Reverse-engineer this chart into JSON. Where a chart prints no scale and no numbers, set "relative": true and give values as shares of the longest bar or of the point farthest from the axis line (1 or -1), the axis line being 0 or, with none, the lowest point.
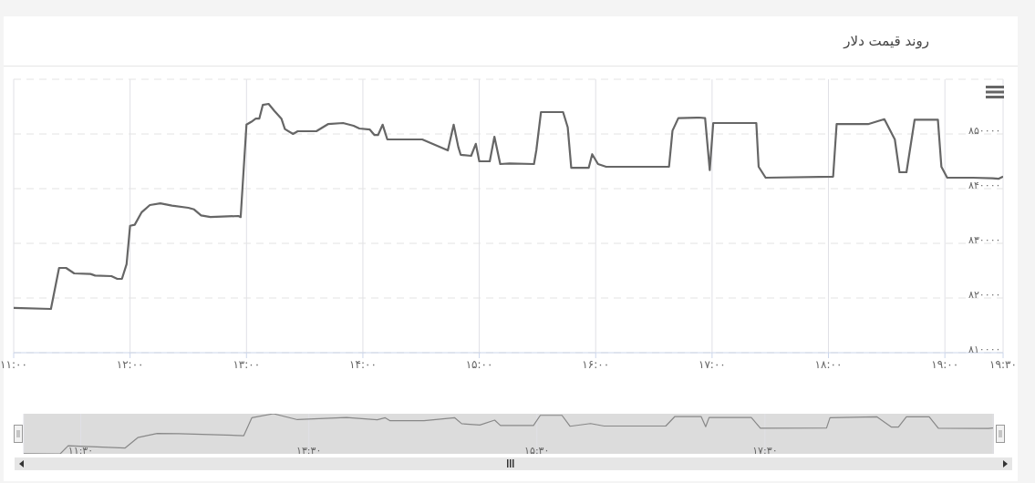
{
  "chart_data": [
    {
      "type": "line",
      "title": "روند قیمت دلار",
      "marker": "none",
      "grid": true,
      "x": [
        11.0,
        11.32,
        11.39,
        11.45,
        11.52,
        11.66,
        11.7,
        11.84,
        11.89,
        11.93,
        11.97,
        12.0,
        12.04,
        12.1,
        12.17,
        12.26,
        12.36,
        12.5,
        12.55,
        12.61,
        12.69,
        12.93,
        12.95,
        13.0,
        13.04,
        13.08,
        13.11,
        13.14,
        13.19,
        13.24,
        13.3,
        13.33,
        13.4,
        13.44,
        13.6,
        13.7,
        13.83,
        13.92,
        13.97,
        14.06,
        14.1,
        14.13,
        14.17,
        14.21,
        14.51,
        14.62,
        14.73,
        14.78,
        14.82,
        14.84,
        14.93,
        14.97,
        15.0,
        15.09,
        15.13,
        15.18,
        15.26,
        15.47,
        15.49,
        15.53,
        15.72,
        15.76,
        15.79,
        15.94,
        15.97,
        16.02,
        16.09,
        16.63,
        16.66,
        16.71,
        16.89,
        16.94,
        16.98,
        17.01,
        17.38,
        17.4,
        17.46,
        18.04,
        18.07,
        18.34,
        18.48,
        18.57,
        18.61,
        18.67,
        18.74,
        18.94,
        18.97,
        19.02,
        19.24,
        19.41,
        19.46,
        19.5
      ],
      "series": [
        {
          "color": "#666666",
          "values": [
            818200,
            818000,
            825500,
            825500,
            824500,
            824400,
            824100,
            824000,
            823500,
            823500,
            826200,
            833200,
            833400,
            835700,
            837000,
            837300,
            836900,
            836500,
            836200,
            835100,
            834800,
            835000,
            834800,
            851700,
            852200,
            852800,
            852800,
            855300,
            855500,
            854200,
            852800,
            850900,
            850000,
            850500,
            850500,
            851800,
            852000,
            851500,
            851000,
            850800,
            849800,
            849800,
            851700,
            849000,
            849000,
            848000,
            847000,
            851700,
            847600,
            846200,
            846000,
            848200,
            845000,
            845000,
            849500,
            844500,
            844600,
            844500,
            847000,
            854000,
            854000,
            851200,
            843800,
            843800,
            846300,
            844500,
            844000,
            844000,
            850600,
            852900,
            853000,
            852900,
            843400,
            852000,
            852000,
            844000,
            842000,
            842200,
            851800,
            851800,
            852700,
            849000,
            843000,
            843000,
            852600,
            852600,
            844000,
            842000,
            842000,
            841900,
            841800,
            842200
          ]
        }
      ],
      "xlim": [
        11,
        19.5
      ],
      "xticks": [
        {
          "value": 11,
          "label": "۱۱:۰۰"
        },
        {
          "value": 12,
          "label": "۱۲:۰۰"
        },
        {
          "value": 13,
          "label": "۱۳:۰۰"
        },
        {
          "value": 14,
          "label": "۱۴:۰۰"
        },
        {
          "value": 15,
          "label": "۱۵:۰۰"
        },
        {
          "value": 16,
          "label": "۱۶:۰۰"
        },
        {
          "value": 17,
          "label": "۱۷:۰۰"
        },
        {
          "value": 18,
          "label": "۱۸:۰۰"
        },
        {
          "value": 19,
          "label": "۱۹:۰۰"
        },
        {
          "value": 19.5,
          "label": "۱۹:۳۰"
        }
      ],
      "ylim": [
        810000,
        860000
      ],
      "yticks": [
        {
          "value": 810000,
          "label": "۸۱۰۰۰۰"
        },
        {
          "value": 820000,
          "label": "۸۲۰۰۰۰"
        },
        {
          "value": 830000,
          "label": "۸۳۰۰۰۰"
        },
        {
          "value": 840000,
          "label": "۸۴۰۰۰۰"
        },
        {
          "value": 850000,
          "label": "۸۵۰۰۰۰"
        }
      ]
    },
    {
      "type": "line",
      "relative": true,
      "marker": "none",
      "grid": "x",
      "x": [
        11.0,
        11.32,
        11.39,
        11.89,
        12.0,
        12.17,
        12.36,
        12.93,
        13.0,
        13.19,
        13.4,
        13.83,
        14.1,
        14.17,
        14.21,
        14.51,
        14.78,
        14.84,
        15.0,
        15.13,
        15.18,
        15.47,
        15.53,
        15.72,
        15.79,
        15.97,
        16.09,
        16.63,
        16.71,
        16.94,
        16.98,
        17.01,
        17.38,
        17.46,
        18.04,
        18.07,
        18.48,
        18.61,
        18.67,
        18.74,
        18.94,
        19.02,
        19.46,
        19.5
      ],
      "series": [
        {
          "color": "#888888",
          "values": [
            0.005,
            0,
            0.2,
            0.147,
            0.405,
            0.507,
            0.504,
            0.453,
            0.899,
            1,
            0.853,
            0.907,
            0.848,
            0.899,
            0.827,
            0.827,
            0.899,
            0.752,
            0.72,
            0.84,
            0.707,
            0.707,
            0.96,
            0.96,
            0.688,
            0.755,
            0.693,
            0.693,
            0.931,
            0.931,
            0.677,
            0.907,
            0.907,
            0.64,
            0.645,
            0.901,
            0.925,
            0.667,
            0.667,
            0.923,
            0.923,
            0.64,
            0.635,
            0.645
          ]
        }
      ],
      "xlim": [
        11,
        19.5
      ],
      "xticks": [
        {
          "value": 11.5,
          "label": "۱۱:۳۰"
        },
        {
          "value": 13.5,
          "label": "۱۳:۳۰"
        },
        {
          "value": 15.5,
          "label": "۱۵:۳۰"
        },
        {
          "value": 17.5,
          "label": "۱۷:۳۰"
        }
      ]
    }
  ]
}
